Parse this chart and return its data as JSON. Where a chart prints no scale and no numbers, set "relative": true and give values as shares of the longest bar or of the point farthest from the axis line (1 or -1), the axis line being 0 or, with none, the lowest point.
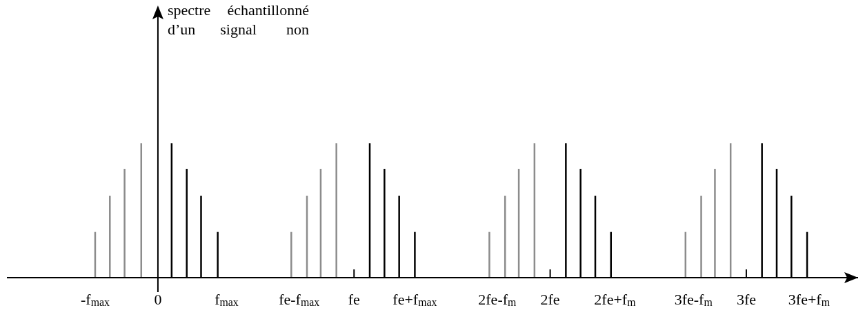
{
  "chart_data": {
    "type": "bar",
    "relative": true,
    "title": "spectre échantillonné d’un signal non",
    "xlim": [
      -0.77,
      3.57
    ],
    "xticks": [
      {
        "value": -0.32,
        "label": "-f$_{max}$"
      },
      {
        "value": 0,
        "label": "0"
      },
      {
        "value": 0.35,
        "label": "f$_{max}$"
      },
      {
        "value": 0.72,
        "label": "fe-f$_{max}$"
      },
      {
        "value": 1,
        "label": "fe"
      },
      {
        "value": 1.31,
        "label": "fe+f$_{max}$"
      },
      {
        "value": 1.73,
        "label": "2fe-f$_{m}$"
      },
      {
        "value": 2,
        "label": "2fe"
      },
      {
        "value": 2.33,
        "label": "2fe+f$_{m}$"
      },
      {
        "value": 2.73,
        "label": "3fe-f$_{m}$"
      },
      {
        "value": 3,
        "label": "3fe"
      },
      {
        "value": 3.32,
        "label": "3fe+f$_{m}$"
      },
      {
        "value": 1,
        "label": null
      },
      {
        "value": 2,
        "label": null
      },
      {
        "value": 3,
        "label": null
      }
    ],
    "series": [
      {
        "color": "#8c8c8c",
        "x": [
          -0.32,
          -0.245,
          -0.17,
          -0.085,
          0.68,
          0.76,
          0.83,
          0.91,
          1.69,
          1.77,
          1.84,
          1.92,
          2.69,
          2.77,
          2.84,
          2.92
        ],
        "values": [
          0.34,
          0.61,
          0.81,
          1,
          0.34,
          0.61,
          0.81,
          1,
          0.34,
          0.61,
          0.81,
          1,
          0.34,
          0.61,
          0.81,
          1
        ]
      },
      {
        "color": "#000000",
        "x": [
          0.07,
          0.147,
          0.22,
          0.305,
          1.08,
          1.155,
          1.23,
          1.31,
          2.08,
          2.155,
          2.23,
          2.31,
          3.08,
          3.155,
          3.23,
          3.31
        ],
        "values": [
          1,
          0.81,
          0.61,
          0.34,
          1,
          0.81,
          0.61,
          0.34,
          1,
          0.81,
          0.61,
          0.34,
          1,
          0.81,
          0.61,
          0.34
        ]
      }
    ]
  }
}
